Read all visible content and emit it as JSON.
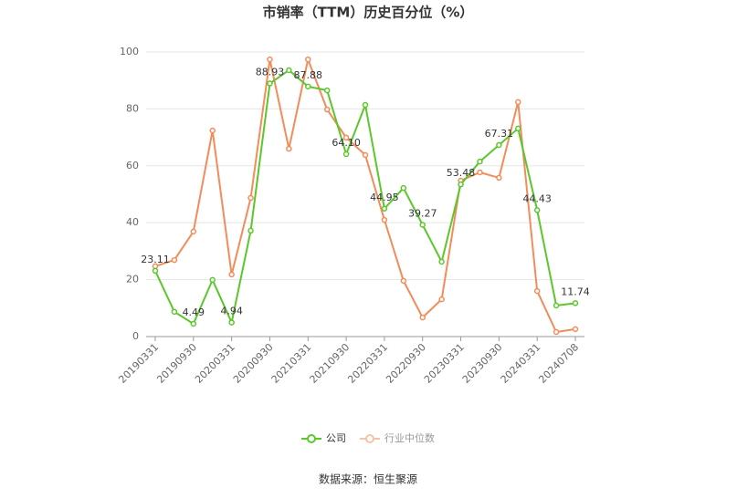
{
  "chart_data": {
    "type": "line",
    "title": "市销率（TTM）历史百分位（%）",
    "categories": [
      "20190331",
      null,
      "20190930",
      null,
      "20200331",
      null,
      "20200930",
      null,
      "20210331",
      null,
      "20210930",
      null,
      "20220331",
      null,
      "20220930",
      null,
      "20230331",
      null,
      "20230930",
      null,
      "20240331",
      null,
      "20240708"
    ],
    "series": [
      {
        "name": "公司",
        "color": "#5cc72c",
        "values": [
          23.11,
          8.7,
          4.49,
          19.9,
          4.94,
          37.2,
          88.93,
          93.6,
          87.88,
          86.5,
          64.1,
          81.4,
          44.95,
          52.2,
          39.27,
          26.3,
          53.48,
          61.5,
          67.31,
          73.1,
          44.43,
          10.9,
          11.74
        ],
        "value_labels": [
          "23.11",
          null,
          "4.49",
          null,
          "4.94",
          null,
          "88.93",
          null,
          "87.88",
          null,
          "64.10",
          null,
          "44.95",
          null,
          "39.27",
          null,
          "53.48",
          null,
          "67.31",
          null,
          "44.43",
          null,
          "11.74"
        ]
      },
      {
        "name": "行业中位数",
        "color": "#f28c5a",
        "values": [
          24.7,
          26.9,
          36.9,
          72.4,
          21.8,
          48.7,
          97.4,
          66.0,
          97.4,
          79.8,
          69.9,
          63.8,
          41.0,
          19.6,
          6.7,
          13.1,
          54.8,
          57.7,
          55.8,
          82.4,
          16.0,
          1.6,
          2.6
        ]
      }
    ],
    "ylim": [
      0,
      100
    ],
    "yticks": [
      0,
      20,
      40,
      60,
      80,
      100
    ],
    "grid": true,
    "legend": "bottom",
    "source": "数据来源：恒生聚源"
  }
}
